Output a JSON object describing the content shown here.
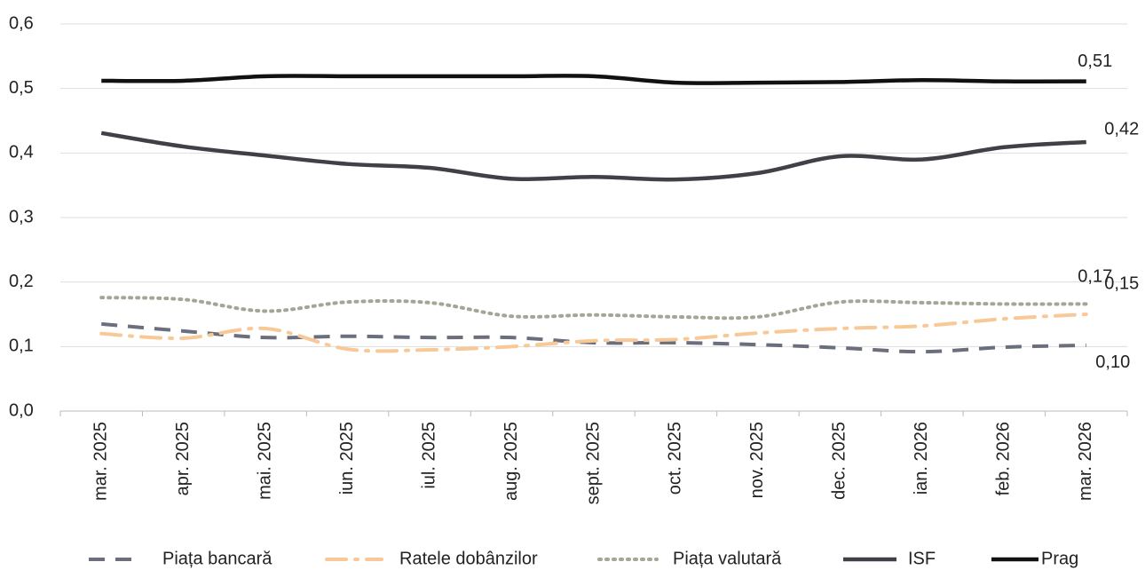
{
  "chart_data": {
    "type": "line",
    "categories": [
      "mar. 2025",
      "apr. 2025",
      "mai. 2025",
      "iun. 2025",
      "iul. 2025",
      "aug. 2025",
      "sept. 2025",
      "oct. 2025",
      "nov. 2025",
      "dec. 2025",
      "ian. 2026",
      "feb. 2026",
      "mar. 2026"
    ],
    "ylim": [
      0,
      0.6
    ],
    "yticks": [
      {
        "value": 0,
        "label": "0,0"
      },
      {
        "value": 0.1,
        "label": "0,1"
      },
      {
        "value": 0.2,
        "label": "0,2"
      },
      {
        "value": 0.3,
        "label": "0,3"
      },
      {
        "value": 0.4,
        "label": "0,4"
      },
      {
        "value": 0.5,
        "label": "0,5"
      },
      {
        "value": 0.6,
        "label": "0,6"
      }
    ],
    "grid": true,
    "legend": "bottom",
    "series": [
      {
        "name": "Piața bancară",
        "color": "#6b6e7c",
        "dash": "dashed",
        "values": [
          0.135,
          0.124,
          0.114,
          0.116,
          0.114,
          0.114,
          0.106,
          0.106,
          0.103,
          0.098,
          0.092,
          0.099,
          0.102
        ],
        "value_labels": [
          null,
          null,
          null,
          null,
          null,
          null,
          null,
          null,
          null,
          null,
          null,
          null,
          "0,10"
        ]
      },
      {
        "name": "Ratele dobânzilor",
        "color": "#f9c897",
        "dash": "dashdot",
        "values": [
          0.12,
          0.113,
          0.128,
          0.096,
          0.095,
          0.1,
          0.109,
          0.111,
          0.121,
          0.128,
          0.132,
          0.143,
          0.15
        ],
        "value_labels": [
          null,
          null,
          null,
          null,
          null,
          null,
          null,
          null,
          null,
          null,
          null,
          null,
          "0,15"
        ]
      },
      {
        "name": "Piața valutară",
        "color": "#a5a595",
        "dash": "dotted",
        "values": [
          0.176,
          0.173,
          0.155,
          0.169,
          0.168,
          0.147,
          0.149,
          0.146,
          0.146,
          0.169,
          0.168,
          0.166,
          0.166
        ],
        "value_labels": [
          null,
          null,
          null,
          null,
          null,
          null,
          null,
          null,
          null,
          null,
          null,
          null,
          "0,17"
        ]
      },
      {
        "name": "ISF",
        "color": "#3f4147",
        "dash": "solid",
        "values": [
          0.431,
          0.41,
          0.396,
          0.383,
          0.377,
          0.36,
          0.363,
          0.359,
          0.369,
          0.395,
          0.39,
          0.409,
          0.417
        ],
        "value_labels": [
          null,
          null,
          null,
          null,
          null,
          null,
          null,
          null,
          null,
          null,
          null,
          null,
          "0,42"
        ]
      },
      {
        "name": "Prag",
        "color": "#111111",
        "dash": "solid",
        "values": [
          0.512,
          0.512,
          0.519,
          0.519,
          0.519,
          0.519,
          0.519,
          0.509,
          0.509,
          0.51,
          0.513,
          0.511,
          0.511
        ],
        "value_labels": [
          null,
          null,
          null,
          null,
          null,
          null,
          null,
          null,
          null,
          null,
          null,
          null,
          "0,51"
        ]
      }
    ]
  }
}
